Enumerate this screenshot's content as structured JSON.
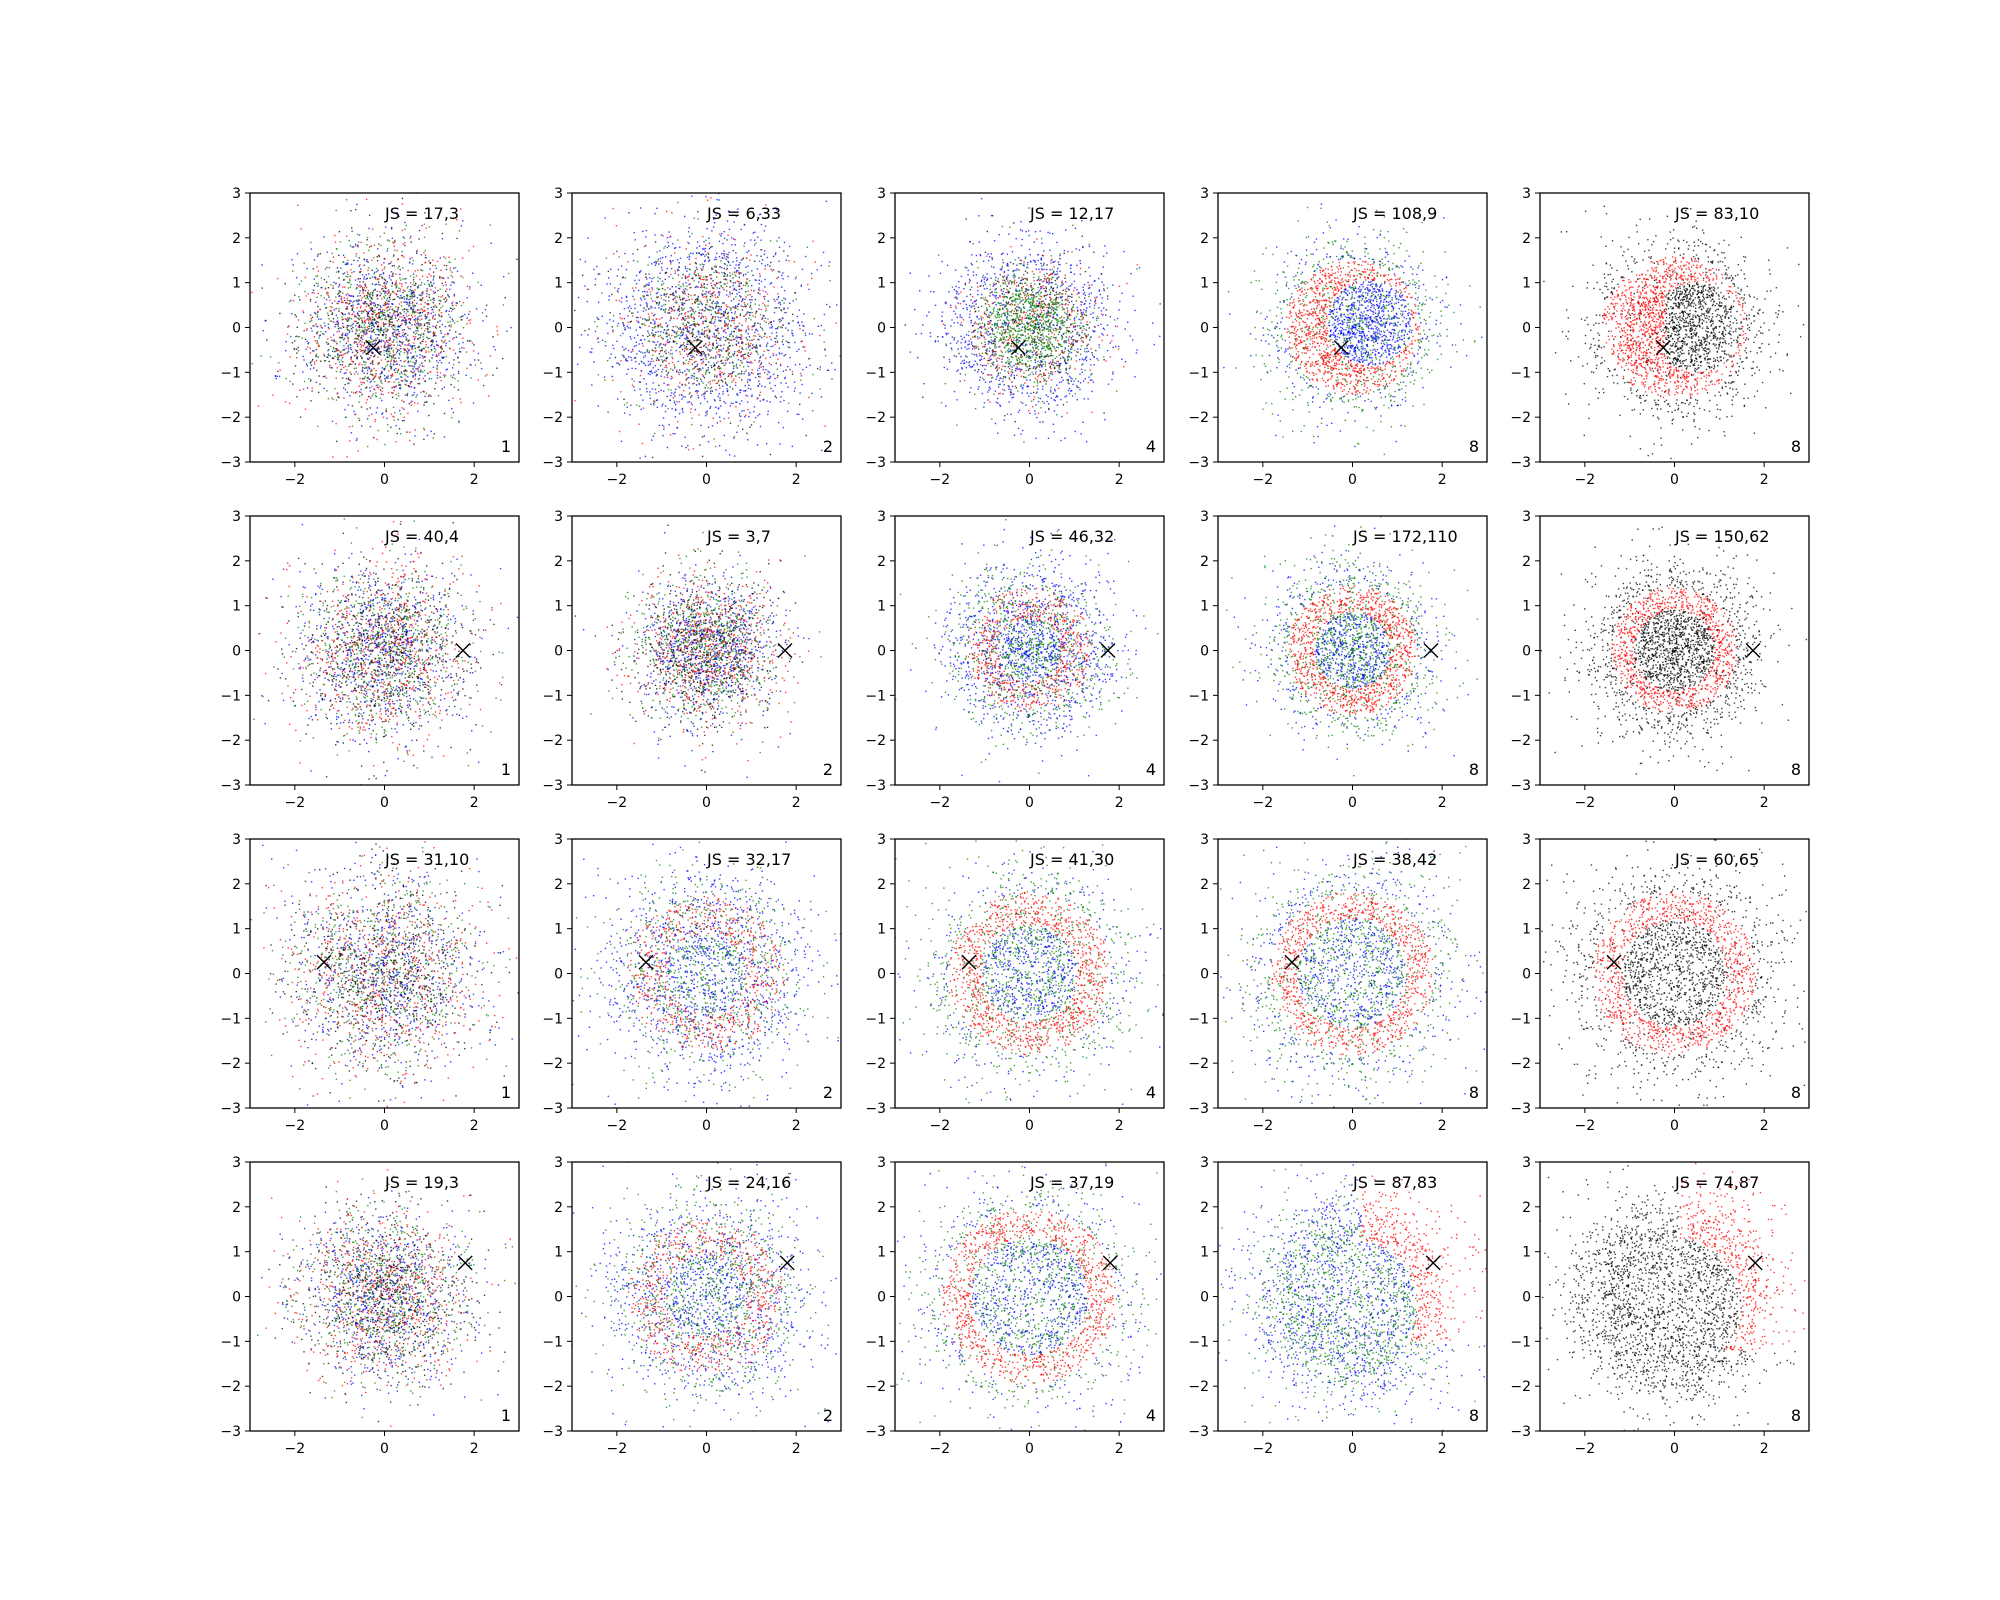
{
  "figure": {
    "colors": {
      "red": "#ff0000",
      "green": "#008000",
      "blue": "#0000ff",
      "black": "#000000",
      "axis": "#000000"
    }
  },
  "chart_data": {
    "type": "scatter",
    "grid": false,
    "legend": false,
    "xlim": [
      -3,
      3
    ],
    "ylim": [
      -3,
      3
    ],
    "xticks": [
      -2,
      0,
      2
    ],
    "yticks": [
      -3,
      -2,
      -1,
      0,
      1,
      2,
      3
    ],
    "marker_label": "x",
    "panels": [
      {
        "row": 0,
        "col": 0,
        "label": "JS = 17,3",
        "k": "1",
        "marker": [
          -0.25,
          -0.45
        ],
        "pattern": "mixed",
        "radius": 1.0,
        "colors": [
          "red",
          "green",
          "blue",
          "black"
        ]
      },
      {
        "row": 0,
        "col": 1,
        "label": "JS = 6,33",
        "k": "2",
        "marker": [
          -0.25,
          -0.45
        ],
        "pattern": "mixed_blue_wide",
        "radius": 1.2,
        "colors": [
          "red",
          "green",
          "blue",
          "black"
        ]
      },
      {
        "row": 0,
        "col": 2,
        "label": "JS = 12,17",
        "k": "4",
        "marker": [
          -0.25,
          -0.45
        ],
        "pattern": "core_green",
        "radius": 0.9,
        "colors": [
          "red",
          "green",
          "blue",
          "black"
        ]
      },
      {
        "row": 0,
        "col": 3,
        "label": "JS = 108,9",
        "k": "8",
        "marker": [
          -0.25,
          -0.45
        ],
        "pattern": "crescent_rb",
        "radius": 1.0,
        "colors": [
          "red",
          "green",
          "blue"
        ]
      },
      {
        "row": 0,
        "col": 4,
        "label": "JS = 83,10",
        "k": "8",
        "marker": [
          -0.25,
          -0.45
        ],
        "pattern": "crescent_rk",
        "radius": 1.0,
        "colors": [
          "red",
          "black"
        ]
      },
      {
        "row": 1,
        "col": 0,
        "label": "JS = 40,4",
        "k": "1",
        "marker": [
          1.75,
          0.0
        ],
        "pattern": "mixed",
        "radius": 1.0,
        "colors": [
          "red",
          "green",
          "blue",
          "black"
        ]
      },
      {
        "row": 1,
        "col": 1,
        "label": "JS = 3,7",
        "k": "2",
        "marker": [
          1.75,
          0.0
        ],
        "pattern": "mixed",
        "radius": 0.85,
        "colors": [
          "red",
          "green",
          "blue",
          "black"
        ]
      },
      {
        "row": 1,
        "col": 2,
        "label": "JS = 46,32",
        "k": "4",
        "marker": [
          1.75,
          0.0
        ],
        "pattern": "ring_weak",
        "radius": 1.0,
        "colors": [
          "red",
          "green",
          "blue"
        ]
      },
      {
        "row": 1,
        "col": 3,
        "label": "JS = 172,110",
        "k": "8",
        "marker": [
          1.75,
          0.0
        ],
        "pattern": "ring_rgb",
        "radius": 1.0,
        "colors": [
          "red",
          "green",
          "blue"
        ]
      },
      {
        "row": 1,
        "col": 4,
        "label": "JS = 150,62",
        "k": "8",
        "marker": [
          1.75,
          0.0
        ],
        "pattern": "ring_rk",
        "radius": 1.0,
        "colors": [
          "red",
          "black"
        ]
      },
      {
        "row": 2,
        "col": 0,
        "label": "JS = 31,10",
        "k": "1",
        "marker": [
          -1.35,
          0.25
        ],
        "pattern": "mixed",
        "radius": 1.15,
        "colors": [
          "red",
          "green",
          "blue",
          "black"
        ]
      },
      {
        "row": 2,
        "col": 1,
        "label": "JS = 32,17",
        "k": "2",
        "marker": [
          -1.35,
          0.25
        ],
        "pattern": "ring_weak",
        "radius": 1.25,
        "colors": [
          "red",
          "green",
          "blue"
        ]
      },
      {
        "row": 2,
        "col": 2,
        "label": "JS = 41,30",
        "k": "4",
        "marker": [
          -1.35,
          0.25
        ],
        "pattern": "ring_rgb",
        "radius": 1.25,
        "colors": [
          "red",
          "green",
          "blue"
        ]
      },
      {
        "row": 2,
        "col": 3,
        "label": "JS = 38,42",
        "k": "8",
        "marker": [
          -1.35,
          0.25
        ],
        "pattern": "ring_big_rgb",
        "radius": 1.35,
        "colors": [
          "red",
          "green",
          "blue"
        ]
      },
      {
        "row": 2,
        "col": 4,
        "label": "JS = 60,65",
        "k": "8",
        "marker": [
          -1.35,
          0.25
        ],
        "pattern": "ring_big_rk",
        "radius": 1.3,
        "colors": [
          "red",
          "black"
        ]
      },
      {
        "row": 3,
        "col": 0,
        "label": "JS = 19,3",
        "k": "1",
        "marker": [
          1.8,
          0.75
        ],
        "pattern": "mixed",
        "radius": 1.0,
        "colors": [
          "red",
          "green",
          "blue",
          "black"
        ]
      },
      {
        "row": 3,
        "col": 1,
        "label": "JS = 24,16",
        "k": "2",
        "marker": [
          1.8,
          0.75
        ],
        "pattern": "ring_weak",
        "radius": 1.25,
        "colors": [
          "red",
          "green",
          "blue"
        ]
      },
      {
        "row": 3,
        "col": 2,
        "label": "JS = 37,19",
        "k": "4",
        "marker": [
          1.8,
          0.75
        ],
        "pattern": "ring_big_rgb",
        "radius": 1.45,
        "colors": [
          "red",
          "green",
          "blue"
        ]
      },
      {
        "row": 3,
        "col": 3,
        "label": "JS = 87,83",
        "k": "8",
        "marker": [
          1.8,
          0.75
        ],
        "pattern": "crescent_big_rgb",
        "radius": 1.45,
        "colors": [
          "red",
          "green",
          "blue"
        ]
      },
      {
        "row": 3,
        "col": 4,
        "label": "JS = 74,87",
        "k": "8",
        "marker": [
          1.8,
          0.75
        ],
        "pattern": "crescent_big_rk",
        "radius": 1.45,
        "colors": [
          "red",
          "black"
        ]
      }
    ]
  }
}
